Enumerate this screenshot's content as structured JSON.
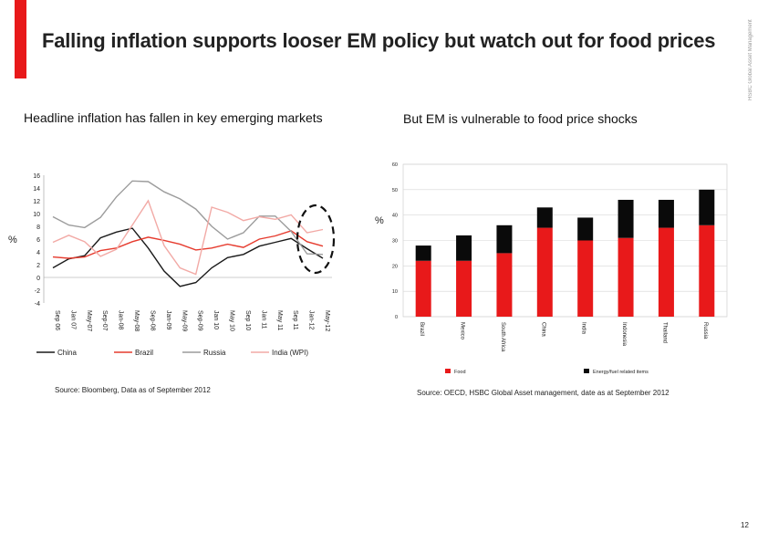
{
  "colors": {
    "accent": "#e8191a",
    "china": "#1a1a1a",
    "brazil": "#e63b2e",
    "russia": "#9c9c9c",
    "india": "#f2aaa6",
    "food": "#e8191a",
    "energy": "#0a0a0a"
  },
  "header": {
    "title": "Falling inflation supports looser EM policy but watch out for food prices",
    "side_label": "HSBC Global Asset Management"
  },
  "left_panel": {
    "subtitle": "Headline inflation has fallen in key emerging markets",
    "source": "Source: Bloomberg, Data as of September 2012"
  },
  "right_panel": {
    "subtitle": "But EM is vulnerable to food price shocks",
    "source": "Source: OECD, HSBC Global Asset management,  date as at September 2012"
  },
  "page_number": "12",
  "chart_data": [
    {
      "type": "line",
      "ylabel": "%",
      "ylim": [
        -4,
        16
      ],
      "yticks": [
        -4,
        -2,
        0,
        2,
        4,
        6,
        8,
        10,
        12,
        14,
        16
      ],
      "x": [
        "Sep-06",
        "Jan-07",
        "May-07",
        "Sep-07",
        "Jan-08",
        "May-08",
        "Sep-08",
        "Jan-09",
        "May-09",
        "Sep-09",
        "Jan-10",
        "May-10",
        "Sep-10",
        "Jan-11",
        "May-11",
        "Sep-11",
        "Jan-12",
        "May-12"
      ],
      "tick_labels": [
        "Sep 06",
        "Jan 07",
        "May-07",
        "Sep-07",
        "Jan-08",
        "May-08",
        "Sep-08",
        "Jan-09",
        "May-09",
        "Sep-09",
        "Jan 10",
        "May 10",
        "Sep 10",
        "Jan 11",
        "May 11",
        "Sep 11",
        "Jan-12",
        "May-12"
      ],
      "series": [
        {
          "name": "China",
          "values": [
            1.5,
            2.9,
            3.4,
            6.2,
            7.1,
            7.7,
            4.6,
            1.0,
            -1.4,
            -0.8,
            1.5,
            3.1,
            3.6,
            4.9,
            5.5,
            6.1,
            4.5,
            3.0
          ]
        },
        {
          "name": "Brazil",
          "values": [
            3.2,
            3.0,
            3.2,
            4.2,
            4.6,
            5.6,
            6.3,
            5.8,
            5.2,
            4.3,
            4.6,
            5.2,
            4.7,
            6.0,
            6.5,
            7.3,
            5.6,
            4.9
          ]
        },
        {
          "name": "Russia",
          "values": [
            9.5,
            8.2,
            7.8,
            9.4,
            12.6,
            15.1,
            15.0,
            13.4,
            12.3,
            10.7,
            8.0,
            6.0,
            7.0,
            9.6,
            9.6,
            7.2,
            3.7,
            3.6
          ]
        },
        {
          "name": "India (WPI)",
          "values": [
            5.5,
            6.6,
            5.6,
            3.3,
            4.4,
            8.2,
            12.0,
            5.0,
            1.5,
            0.5,
            11.0,
            10.2,
            8.9,
            9.5,
            9.1,
            9.8,
            7.0,
            7.5
          ]
        }
      ],
      "legend": [
        "China",
        "Brazil",
        "Russia",
        "India (WPI)"
      ],
      "legend_position": "bottom"
    },
    {
      "type": "bar",
      "stacked": true,
      "ylabel": "%",
      "ylim": [
        0,
        60
      ],
      "yticks": [
        0,
        10,
        20,
        30,
        40,
        50,
        60
      ],
      "categories": [
        "Brazil",
        "Mexico",
        "South Africa",
        "China",
        "India",
        "Indonesia",
        "Thailand",
        "Russia"
      ],
      "series": [
        {
          "name": "Food",
          "values": [
            22,
            22,
            25,
            35,
            30,
            31,
            35,
            36
          ]
        },
        {
          "name": "Energy/fuel related items",
          "values": [
            6,
            10,
            11,
            8,
            9,
            15,
            11,
            14
          ]
        }
      ],
      "legend": [
        "Food",
        "Energy/fuel related items"
      ],
      "legend_position": "bottom",
      "grid": true
    }
  ]
}
